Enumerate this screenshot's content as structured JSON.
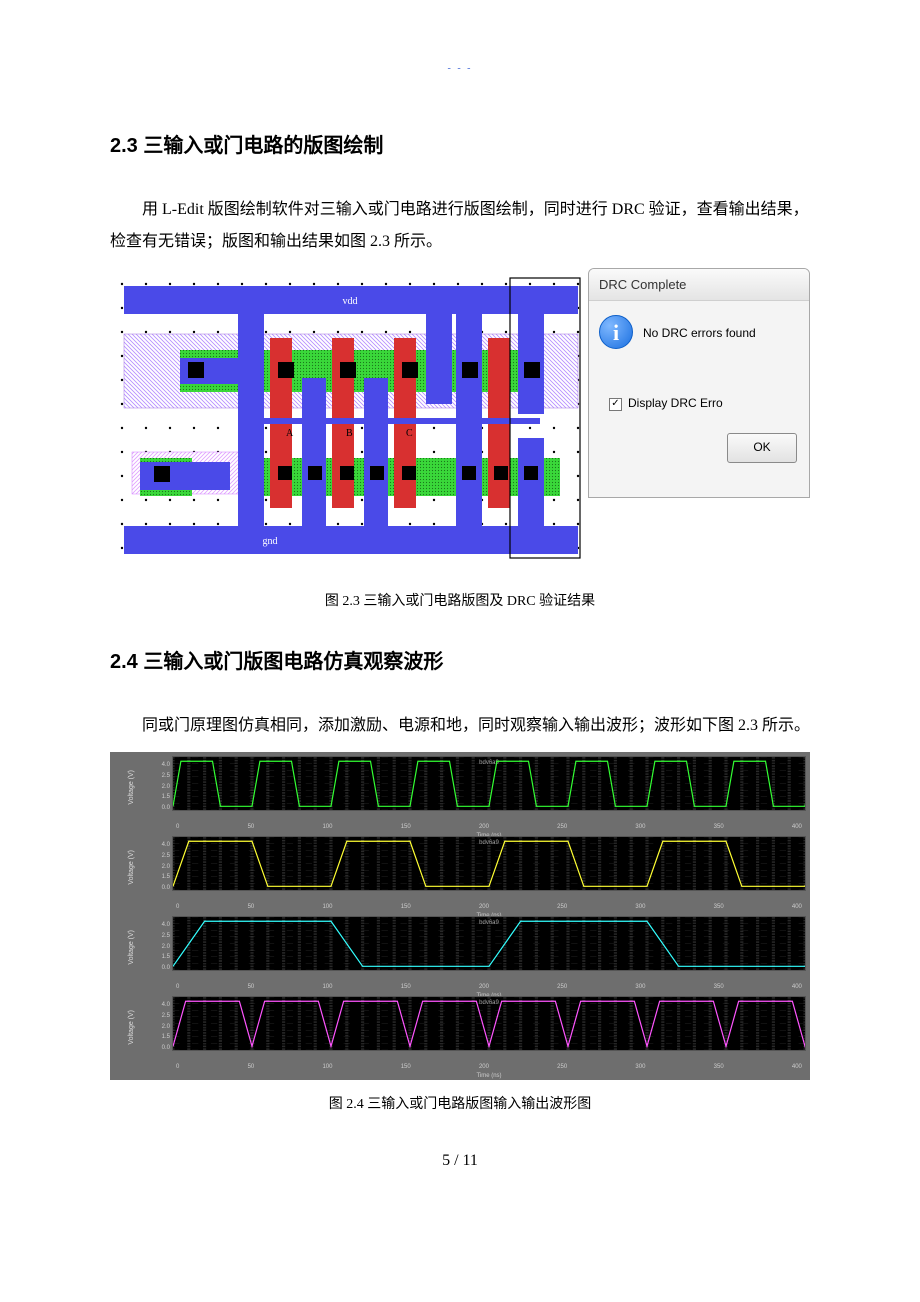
{
  "top_marks": "- - -",
  "section23": {
    "heading": "2.3 三输入或门电路的版图绘制",
    "paragraph": "用 L-Edit 版图绘制软件对三输入或门电路进行版图绘制，同时进行 DRC 验证，查看输出结果，检查有无错误；版图和输出结果如图 2.3 所示。",
    "caption": "图 2.3 三输入或门电路版图及 DRC 验证结果"
  },
  "dialog": {
    "title": "DRC Complete",
    "message": "No DRC errors found",
    "checkbox_label": "Display DRC Erro",
    "checkbox_checked": true,
    "ok_label": "OK"
  },
  "layout": {
    "bg": "#ffffff",
    "grid_color": "#000000",
    "metal_color": "#4a4ae8",
    "poly_color": "#d83030",
    "diff_color": "#3ad83a",
    "nwell_pattern": "#b58cff",
    "contact_color": "#000000",
    "selection_box": "#000000",
    "vdd_label": "vdd",
    "gnd_label": "gnd",
    "mid_labels": [
      "A",
      "B",
      "C"
    ]
  },
  "section24": {
    "heading": "2.4 三输入或门版图电路仿真观察波形",
    "paragraph": "同或门原理图仿真相同，添加激励、电源和地，同时观察输入输出波形；波形如下图 2.3 所示。",
    "caption": "图 2.4  三输入或门电路版图输入输出波形图"
  },
  "waveforms": {
    "panel_bg": "#6e6e6e",
    "plot_bg": "#000000",
    "grid_color": "#444444",
    "title": "bdv6a9",
    "ylabel": "Voltage (V)",
    "yticks": [
      "4.0",
      "2.5",
      "2.0",
      "1.5",
      "0.0"
    ],
    "xlabel": "Time (ns)",
    "xticks": [
      "0",
      "50",
      "100",
      "150",
      "200",
      "250",
      "300",
      "350",
      "400"
    ],
    "xlim": [
      0,
      400
    ],
    "ylim": [
      0,
      4
    ],
    "traces": [
      {
        "color": "#33ff33",
        "period": 50,
        "high": 4.0
      },
      {
        "color": "#ffff33",
        "period": 100,
        "high": 4.0
      },
      {
        "color": "#33ffff",
        "period": 200,
        "high": 4.0
      },
      {
        "color": "#ff55ff",
        "period": 50,
        "high": 4.0,
        "is_output": true
      }
    ]
  },
  "page_number": "5 / 11"
}
